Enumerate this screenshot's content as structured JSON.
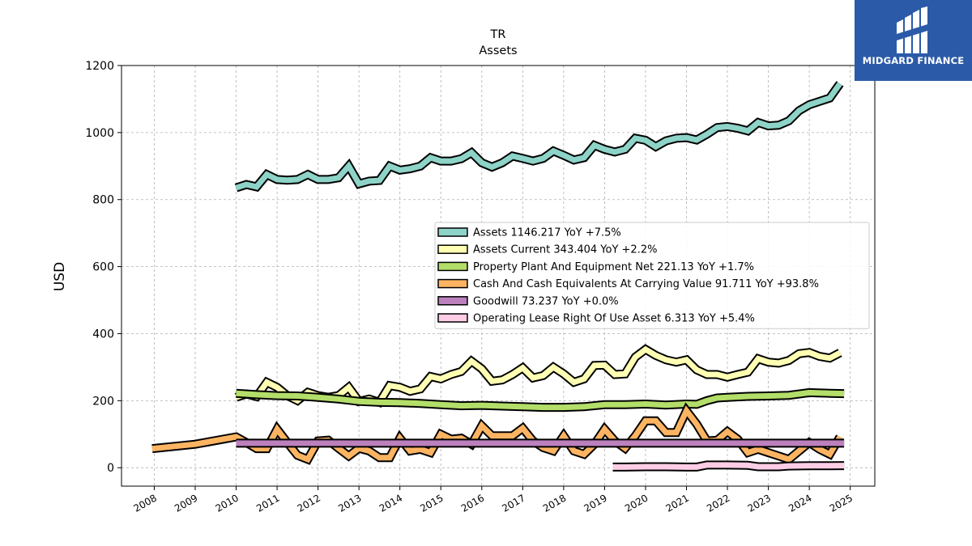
{
  "chart_data": {
    "type": "line",
    "title": "TR",
    "subtitle": "Assets",
    "ylabel": "USD",
    "xlabel": "",
    "xlim": [
      2007.2,
      2025.6
    ],
    "ylim": [
      -55,
      1200
    ],
    "x_ticks": [
      "2008",
      "2009",
      "2010",
      "2011",
      "2012",
      "2013",
      "2014",
      "2015",
      "2016",
      "2017",
      "2018",
      "2019",
      "2020",
      "2021",
      "2022",
      "2023",
      "2024",
      "2025"
    ],
    "y_ticks": [
      0,
      200,
      400,
      600,
      800,
      1000,
      1200
    ],
    "grid": true,
    "legend_position": "center-right",
    "series": [
      {
        "name": "Assets",
        "legend": "Assets  1146.217 YoY +7.5%",
        "color": "#8dd3c7",
        "x": [
          2010.0,
          2010.25,
          2010.5,
          2010.75,
          2011.0,
          2011.25,
          2011.5,
          2011.75,
          2012.0,
          2012.25,
          2012.5,
          2012.75,
          2013.0,
          2013.25,
          2013.5,
          2013.75,
          2014.0,
          2014.25,
          2014.5,
          2014.75,
          2015.0,
          2015.25,
          2015.5,
          2015.75,
          2016.0,
          2016.25,
          2016.5,
          2016.75,
          2017.0,
          2017.25,
          2017.5,
          2017.75,
          2018.0,
          2018.25,
          2018.5,
          2018.75,
          2019.0,
          2019.25,
          2019.5,
          2019.75,
          2020.0,
          2020.25,
          2020.5,
          2020.75,
          2021.0,
          2021.25,
          2021.5,
          2021.75,
          2022.0,
          2022.25,
          2022.5,
          2022.75,
          2023.0,
          2023.25,
          2023.5,
          2023.75,
          2024.0,
          2024.25,
          2024.5,
          2024.75
        ],
        "y": [
          835,
          845,
          838,
          875,
          860,
          858,
          860,
          875,
          860,
          860,
          865,
          900,
          847,
          855,
          857,
          900,
          888,
          892,
          900,
          925,
          915,
          915,
          922,
          940,
          910,
          897,
          910,
          930,
          923,
          915,
          923,
          945,
          932,
          918,
          925,
          962,
          950,
          942,
          950,
          983,
          977,
          958,
          975,
          983,
          985,
          978,
          995,
          1015,
          1018,
          1013,
          1005,
          1030,
          1020,
          1022,
          1035,
          1065,
          1083,
          1093,
          1103,
          1146
        ]
      },
      {
        "name": "Assets Current",
        "legend": "Assets Current  343.404 YoY +2.2%",
        "color": "#ffffb3",
        "x": [
          2010.0,
          2010.25,
          2010.5,
          2010.75,
          2011.0,
          2011.25,
          2011.5,
          2011.75,
          2012.0,
          2012.25,
          2012.5,
          2012.75,
          2013.0,
          2013.25,
          2013.5,
          2013.75,
          2014.0,
          2014.25,
          2014.5,
          2014.75,
          2015.0,
          2015.25,
          2015.5,
          2015.75,
          2016.0,
          2016.25,
          2016.5,
          2016.75,
          2017.0,
          2017.25,
          2017.5,
          2017.75,
          2018.0,
          2018.25,
          2018.5,
          2018.75,
          2019.0,
          2019.25,
          2019.5,
          2019.75,
          2020.0,
          2020.25,
          2020.5,
          2020.75,
          2021.0,
          2021.25,
          2021.5,
          2021.75,
          2022.0,
          2022.25,
          2022.5,
          2022.75,
          2023.0,
          2023.25,
          2023.5,
          2023.75,
          2024.0,
          2024.25,
          2024.5,
          2024.75
        ],
        "y": [
          210,
          220,
          212,
          255,
          240,
          215,
          200,
          225,
          215,
          210,
          215,
          240,
          198,
          205,
          195,
          245,
          240,
          228,
          235,
          272,
          265,
          278,
          287,
          318,
          295,
          258,
          262,
          278,
          298,
          268,
          275,
          300,
          280,
          255,
          265,
          305,
          306,
          278,
          280,
          330,
          353,
          335,
          322,
          315,
          322,
          292,
          278,
          278,
          270,
          278,
          285,
          325,
          315,
          312,
          320,
          340,
          344,
          332,
          327,
          343
        ]
      },
      {
        "name": "Property Plant And Equipment Net",
        "legend": "Property Plant And Equipment Net  221.13 YoY +1.7%",
        "color": "#b3de69",
        "x": [
          2010.0,
          2010.5,
          2011.0,
          2011.5,
          2012.0,
          2012.5,
          2013.0,
          2013.5,
          2014.0,
          2014.5,
          2015.0,
          2015.5,
          2016.0,
          2016.5,
          2017.0,
          2017.5,
          2018.0,
          2018.5,
          2019.0,
          2019.5,
          2020.0,
          2020.5,
          2021.0,
          2021.25,
          2021.5,
          2021.75,
          2022.0,
          2022.5,
          2023.0,
          2023.5,
          2024.0,
          2024.5,
          2024.85
        ],
        "y": [
          222,
          218,
          215,
          214,
          210,
          205,
          198,
          195,
          194,
          192,
          188,
          185,
          186,
          184,
          182,
          180,
          180,
          182,
          188,
          188,
          190,
          187,
          190,
          189,
          200,
          208,
          210,
          213,
          214,
          216,
          224,
          222,
          221
        ]
      },
      {
        "name": "Cash And Cash Equivalents At Carrying Value",
        "legend": "Cash And Cash Equivalents At Carrying Value  91.711 YoY +93.8%",
        "color": "#fdb462",
        "x": [
          2007.95,
          2009.0,
          2010.0,
          2010.25,
          2010.5,
          2010.75,
          2011.0,
          2011.25,
          2011.5,
          2011.75,
          2012.0,
          2012.25,
          2012.5,
          2012.75,
          2013.0,
          2013.25,
          2013.5,
          2013.75,
          2014.0,
          2014.25,
          2014.5,
          2014.75,
          2015.0,
          2015.25,
          2015.5,
          2015.75,
          2016.0,
          2016.25,
          2016.5,
          2016.75,
          2017.0,
          2017.25,
          2017.5,
          2017.75,
          2018.0,
          2018.25,
          2018.5,
          2018.75,
          2019.0,
          2019.25,
          2019.5,
          2019.75,
          2020.0,
          2020.25,
          2020.5,
          2020.75,
          2021.0,
          2021.25,
          2021.5,
          2021.75,
          2022.0,
          2022.25,
          2022.5,
          2022.75,
          2023.0,
          2023.25,
          2023.5,
          2023.75,
          2024.0,
          2024.25,
          2024.5,
          2024.75
        ],
        "y": [
          57,
          70,
          92,
          75,
          57,
          57,
          115,
          75,
          37,
          25,
          80,
          82,
          58,
          35,
          58,
          50,
          30,
          30,
          88,
          50,
          55,
          45,
          100,
          85,
          88,
          70,
          125,
          95,
          95,
          95,
          118,
          80,
          60,
          50,
          95,
          50,
          40,
          70,
          115,
          80,
          58,
          95,
          140,
          140,
          105,
          105,
          170,
          130,
          80,
          82,
          108,
          85,
          45,
          55,
          45,
          35,
          25,
          50,
          75,
          55,
          40,
          92
        ]
      },
      {
        "name": "Goodwill",
        "legend": "Goodwill  73.237 YoY +0.0%",
        "color": "#bc80bd",
        "x": [
          2010.0,
          2024.85
        ],
        "y": [
          73.237,
          73.237
        ]
      },
      {
        "name": "Operating Lease Right Of Use Asset",
        "legend": "Operating Lease Right Of Use Asset  6.313 YoY +5.4%",
        "color": "#fccde5",
        "x": [
          2019.2,
          2019.5,
          2020.0,
          2020.5,
          2021.0,
          2021.25,
          2021.5,
          2022.0,
          2022.5,
          2022.75,
          2023.0,
          2023.25,
          2023.5,
          2024.0,
          2024.5,
          2024.85
        ],
        "y": [
          2,
          2,
          3,
          3,
          2,
          2,
          8,
          8,
          7,
          3,
          3,
          3,
          5,
          6,
          6,
          6.3
        ]
      }
    ]
  },
  "branding": {
    "logo_text": "MIDGARD FINANCE",
    "logo_icon": "midgard-m-icon",
    "logo_color": "#2b5aa8"
  }
}
